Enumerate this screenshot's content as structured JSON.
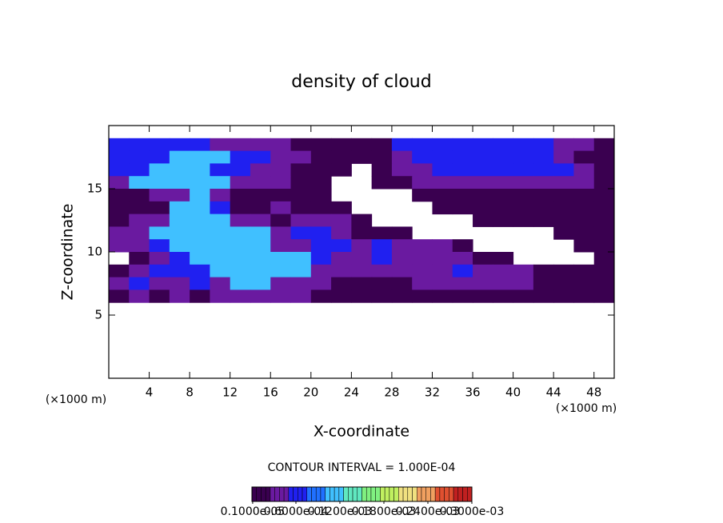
{
  "chart_data": {
    "type": "heatmap",
    "title": "density of cloud",
    "xlabel": "X-coordinate",
    "ylabel": "Z-coordinate",
    "x_unit": "(×1000 m)",
    "y_unit": "(×1000 m)",
    "contour_note": "CONTOUR INTERVAL = 1.000E-04",
    "xlim": [
      0,
      50
    ],
    "ylim": [
      0,
      20
    ],
    "xticks": [
      4,
      8,
      12,
      16,
      20,
      24,
      28,
      32,
      36,
      40,
      44,
      48
    ],
    "yticks": [
      5,
      10,
      15
    ],
    "x": [
      1,
      3,
      5,
      7,
      9,
      11,
      13,
      15,
      17,
      19,
      21,
      23,
      25,
      27,
      29,
      31,
      33,
      35,
      37,
      39,
      41,
      43,
      45,
      47,
      49
    ],
    "y": [
      18.5,
      17.5,
      16.5,
      15.5,
      14.5,
      13.5,
      12.5,
      11.5,
      10.5,
      9.5,
      8.5,
      7.5,
      6.5
    ],
    "z": [
      [
        7e-05,
        7e-05,
        7e-05,
        7e-05,
        7e-05,
        4e-05,
        4e-05,
        4e-05,
        4e-05,
        2e-05,
        2e-05,
        2e-05,
        2e-05,
        2e-05,
        7e-05,
        7e-05,
        7e-05,
        7e-05,
        7e-05,
        7e-05,
        7e-05,
        7e-05,
        4e-05,
        4e-05,
        2e-05
      ],
      [
        7e-05,
        7e-05,
        7e-05,
        0.00011,
        0.00011,
        0.00011,
        7e-05,
        7e-05,
        4e-05,
        4e-05,
        2e-05,
        2e-05,
        2e-05,
        2e-05,
        4e-05,
        7e-05,
        7e-05,
        7e-05,
        7e-05,
        7e-05,
        7e-05,
        7e-05,
        4e-05,
        2e-05,
        2e-05
      ],
      [
        7e-05,
        7e-05,
        0.00011,
        0.00011,
        0.00011,
        7e-05,
        7e-05,
        4e-05,
        4e-05,
        2e-05,
        2e-05,
        2e-05,
        null,
        2e-05,
        4e-05,
        4e-05,
        7e-05,
        7e-05,
        7e-05,
        7e-05,
        7e-05,
        7e-05,
        7e-05,
        4e-05,
        2e-05
      ],
      [
        4e-05,
        0.00011,
        0.00011,
        0.00011,
        0.00011,
        0.00011,
        4e-05,
        4e-05,
        4e-05,
        2e-05,
        2e-05,
        null,
        null,
        2e-05,
        2e-05,
        4e-05,
        4e-05,
        4e-05,
        4e-05,
        4e-05,
        4e-05,
        4e-05,
        4e-05,
        4e-05,
        2e-05
      ],
      [
        2e-05,
        2e-05,
        4e-05,
        4e-05,
        0.00011,
        4e-05,
        2e-05,
        2e-05,
        2e-05,
        2e-05,
        2e-05,
        null,
        null,
        null,
        null,
        2e-05,
        2e-05,
        2e-05,
        2e-05,
        2e-05,
        2e-05,
        2e-05,
        2e-05,
        2e-05,
        2e-05
      ],
      [
        2e-05,
        2e-05,
        2e-05,
        0.00011,
        0.00011,
        7e-05,
        2e-05,
        2e-05,
        4e-05,
        2e-05,
        2e-05,
        2e-05,
        null,
        null,
        null,
        null,
        2e-05,
        2e-05,
        2e-05,
        2e-05,
        2e-05,
        2e-05,
        2e-05,
        2e-05,
        2e-05
      ],
      [
        2e-05,
        4e-05,
        4e-05,
        0.00011,
        0.00011,
        0.00011,
        4e-05,
        4e-05,
        2e-05,
        4e-05,
        4e-05,
        4e-05,
        2e-05,
        null,
        null,
        null,
        null,
        null,
        2e-05,
        2e-05,
        2e-05,
        2e-05,
        2e-05,
        2e-05,
        2e-05
      ],
      [
        4e-05,
        4e-05,
        0.00011,
        0.00011,
        0.00011,
        0.00011,
        0.00011,
        0.00011,
        4e-05,
        7e-05,
        7e-05,
        4e-05,
        2e-05,
        2e-05,
        2e-05,
        null,
        null,
        null,
        null,
        null,
        null,
        null,
        2e-05,
        2e-05,
        2e-05
      ],
      [
        4e-05,
        4e-05,
        7e-05,
        0.00011,
        0.00011,
        0.00011,
        0.00011,
        0.00011,
        4e-05,
        4e-05,
        7e-05,
        7e-05,
        4e-05,
        7e-05,
        4e-05,
        4e-05,
        4e-05,
        2e-05,
        null,
        null,
        null,
        null,
        null,
        2e-05,
        2e-05
      ],
      [
        null,
        2e-05,
        4e-05,
        7e-05,
        0.00011,
        0.00011,
        0.00011,
        0.00011,
        0.00011,
        0.00011,
        7e-05,
        4e-05,
        4e-05,
        7e-05,
        4e-05,
        4e-05,
        4e-05,
        4e-05,
        2e-05,
        2e-05,
        null,
        null,
        null,
        null,
        2e-05
      ],
      [
        2e-05,
        4e-05,
        7e-05,
        7e-05,
        7e-05,
        0.00011,
        0.00011,
        0.00011,
        0.00011,
        0.00011,
        4e-05,
        4e-05,
        4e-05,
        4e-05,
        4e-05,
        4e-05,
        4e-05,
        7e-05,
        4e-05,
        4e-05,
        4e-05,
        2e-05,
        2e-05,
        2e-05,
        2e-05
      ],
      [
        4e-05,
        7e-05,
        4e-05,
        4e-05,
        7e-05,
        4e-05,
        0.00011,
        0.00011,
        4e-05,
        4e-05,
        4e-05,
        2e-05,
        2e-05,
        2e-05,
        2e-05,
        4e-05,
        4e-05,
        4e-05,
        4e-05,
        4e-05,
        4e-05,
        2e-05,
        2e-05,
        2e-05,
        2e-05
      ],
      [
        2e-05,
        4e-05,
        2e-05,
        4e-05,
        2e-05,
        4e-05,
        4e-05,
        4e-05,
        4e-05,
        4e-05,
        2e-05,
        2e-05,
        2e-05,
        2e-05,
        2e-05,
        2e-05,
        2e-05,
        2e-05,
        2e-05,
        2e-05,
        2e-05,
        2e-05,
        2e-05,
        2e-05,
        2e-05
      ]
    ],
    "colorscale": [
      "#3a0050",
      "#6a1aa0",
      "#2020f0",
      "#2070ff",
      "#40c0ff",
      "#60e8c0",
      "#80f080",
      "#c0f060",
      "#f0e080",
      "#f0a060",
      "#e05030",
      "#c02020"
    ],
    "zlim": [
      0,
      0.0003
    ],
    "colorbar_ticks": [
      {
        "value": 1e-06,
        "label": "0.1000e-05"
      },
      {
        "value": 6e-05,
        "label": "0.6000e-04"
      },
      {
        "value": 0.00012,
        "label": "0.1200e-03"
      },
      {
        "value": 0.00018,
        "label": "0.1800e-03"
      },
      {
        "value": 0.00024,
        "label": "0.2400e-03"
      },
      {
        "value": 0.0003,
        "label": "0.3000e-03"
      }
    ]
  }
}
